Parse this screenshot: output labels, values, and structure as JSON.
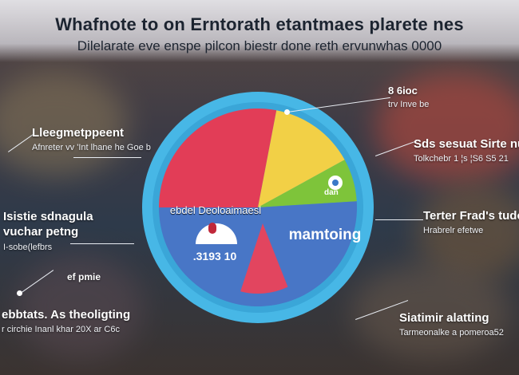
{
  "header": {
    "title": "Whafnote to on Erntorath etantmaes plarete nes",
    "subtitle": "Dilelarate eve enspe pilcon biestr done reth ervunwhas 0000"
  },
  "callouts": [
    {
      "heading": "Lleegmetppeent",
      "sub": "Afnreter vv 'Int lhane he Goe b"
    },
    {
      "heading": "Isistie sdnagula vuchar petng",
      "sub": "I-sobe(lefbrs"
    },
    {
      "heading": "ef pmie",
      "sub": ""
    },
    {
      "heading": "ebbtats. As theoligting",
      "sub": "r circhie Inanl khar 20X ar C6c"
    },
    {
      "heading": "8 6ioc",
      "sub": "trv Inve be"
    },
    {
      "heading": "Sds sesuat Sirte nu",
      "sub": "Tolkchebr 1 ¦s ¦S6 S5 21"
    },
    {
      "heading": "Terter Frad's tudc",
      "sub": "Hrabrelr efetwe"
    },
    {
      "heading": "Siatimir alatting",
      "sub": "Tarmeonalke a pomeroa52"
    }
  ],
  "chart_data": {
    "type": "pie",
    "title": "",
    "slice_labels": [
      "ebdel Deoloaimaesl",
      "mamtoing"
    ],
    "center_value": ".3193 10",
    "inner_badge": "dan",
    "slices": [
      {
        "value": 28,
        "color": "#e23d57"
      },
      {
        "value": 14,
        "color": "#f2d046"
      },
      {
        "value": 7,
        "color": "#7ec43a"
      },
      {
        "value": 51,
        "color": "#4876c6"
      }
    ],
    "colors": {
      "ring": "#47b7e6",
      "ring_inner": "#3aa6d8",
      "lower_slice": "#e2455f"
    }
  }
}
